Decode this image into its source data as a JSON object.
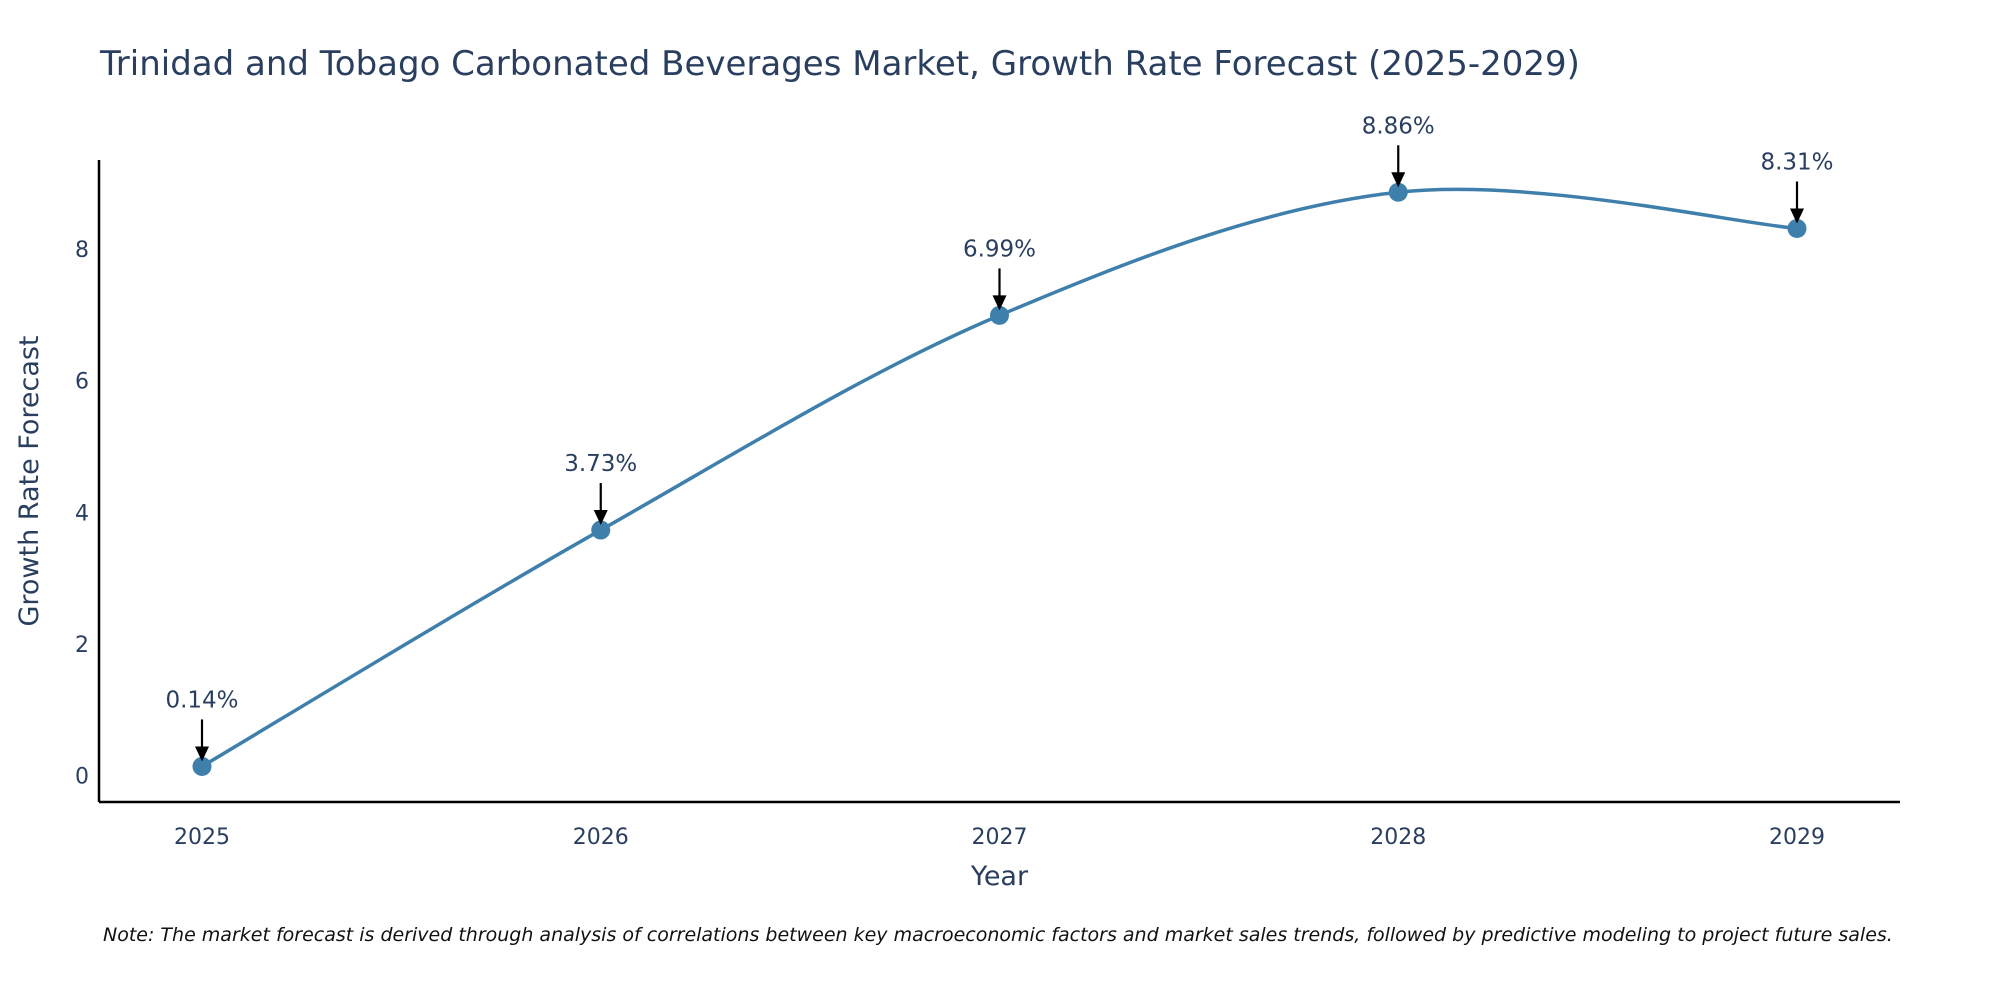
{
  "chart_data": {
    "type": "line",
    "title": "Trinidad and Tobago Carbonated Beverages Market, Growth Rate Forecast (2025-2029)",
    "xlabel": "Year",
    "ylabel": "Growth Rate Forecast",
    "categories": [
      "2025",
      "2026",
      "2027",
      "2028",
      "2029"
    ],
    "values": [
      0.14,
      3.73,
      6.99,
      8.86,
      8.31
    ],
    "data_labels": [
      "0.14%",
      "3.73%",
      "6.99%",
      "8.86%",
      "8.31%"
    ],
    "yticks": [
      0,
      2,
      4,
      6,
      8
    ],
    "ylim": [
      -0.4,
      9.35
    ],
    "grid": false,
    "line_shape": "spline",
    "series_color": "#3f7fab",
    "note": "Note: The market forecast is derived through analysis of correlations between key macroeconomic factors and market sales trends, followed by predictive modeling to project future sales."
  }
}
